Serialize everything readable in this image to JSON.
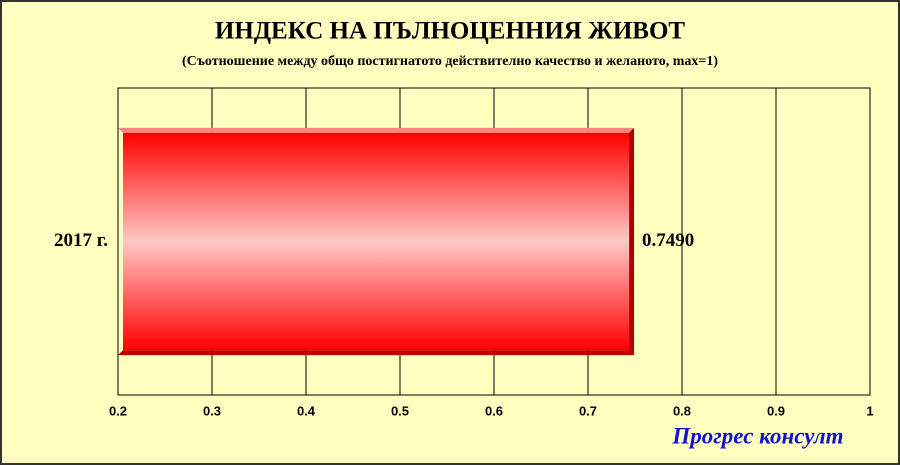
{
  "chart_data": {
    "type": "barh",
    "title": "ИНДЕКС НА ПЪЛНОЦЕННИЯ ЖИВОТ",
    "subtitle": "(Съотношение между общо постигнатото действително качество и желаното, max=1)",
    "categories": [
      "2017 г."
    ],
    "values": [
      0.749
    ],
    "value_labels": [
      "0.7490"
    ],
    "color": "#ff0000",
    "xlim": [
      0.2,
      1
    ],
    "xticks": [
      0.2,
      0.3,
      0.4,
      0.5,
      0.6,
      0.7,
      0.8,
      0.9,
      1
    ],
    "grid": true,
    "annotation": "Прогрес консулт"
  }
}
